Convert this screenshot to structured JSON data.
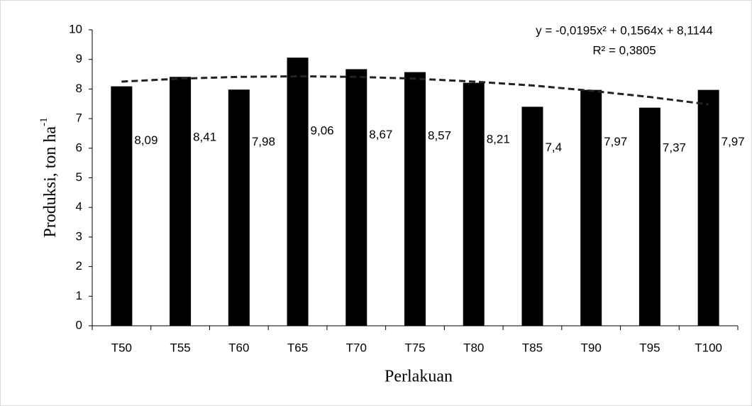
{
  "chart_data": {
    "type": "bar",
    "x_label": "Perlakuan",
    "y_label": "Produksi, ton ha",
    "y_label_sup": "-1",
    "categories": [
      "T50",
      "T55",
      "T60",
      "T65",
      "T70",
      "T75",
      "T80",
      "T85",
      "T90",
      "T95",
      "T100"
    ],
    "values": [
      8.09,
      8.41,
      7.98,
      9.06,
      8.67,
      8.57,
      8.21,
      7.4,
      7.97,
      7.37,
      7.97
    ],
    "value_labels": [
      "8,09",
      "8,41",
      "7,98",
      "9,06",
      "8,67",
      "8,57",
      "8,21",
      "7,4",
      "7,97",
      "7,37",
      "7,97"
    ],
    "color": "#000000",
    "trendline": {
      "equation": "y = -0,0195x² + 0,1564x + 8,1144",
      "r_squared": "R² = 0,3805",
      "values": [
        8.25,
        8.35,
        8.41,
        8.43,
        8.41,
        8.35,
        8.25,
        8.12,
        7.94,
        7.73,
        7.48
      ],
      "color": "#222222"
    },
    "ylim": [
      0,
      10
    ],
    "yticks": [
      0,
      1,
      2,
      3,
      4,
      5,
      6,
      7,
      8,
      9,
      10
    ]
  }
}
